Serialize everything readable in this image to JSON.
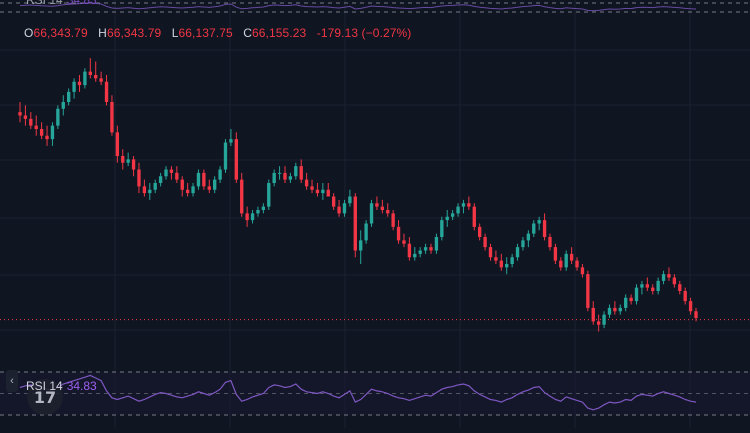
{
  "ohlc": {
    "o_key": "O",
    "o_val": "66,343.79",
    "h_key": "H",
    "h_val": "66,343.79",
    "l_key": "L",
    "l_val": "66,137.75",
    "c_key": "C",
    "c_val": "66,155.23",
    "change": "-179.13 (−0.27%)"
  },
  "rsi": {
    "name": "RSI 14",
    "value": "34.83"
  },
  "colors": {
    "background": "#0f1521",
    "up": "#26a69a",
    "down": "#f23645",
    "rsi_line": "#7e57c2",
    "grid": "#1b2130",
    "price_line": "#f23645"
  },
  "icons": {
    "collapse": "chevron-left-icon",
    "logo": "tradingview-logo-icon"
  },
  "chart_data": {
    "type": "candlestick",
    "title": "",
    "price_range": [
      66080,
      66960
    ],
    "last_price": 66155.23,
    "grid": true,
    "candles": [
      [
        66770,
        66800,
        66740,
        66760
      ],
      [
        66760,
        66790,
        66730,
        66750
      ],
      [
        66750,
        66770,
        66720,
        66730
      ],
      [
        66730,
        66760,
        66700,
        66720
      ],
      [
        66720,
        66740,
        66690,
        66700
      ],
      [
        66700,
        66730,
        66670,
        66690
      ],
      [
        66690,
        66740,
        66670,
        66730
      ],
      [
        66730,
        66790,
        66720,
        66780
      ],
      [
        66780,
        66820,
        66760,
        66800
      ],
      [
        66800,
        66840,
        66790,
        66830
      ],
      [
        66830,
        66870,
        66810,
        66860
      ],
      [
        66860,
        66880,
        66830,
        66850
      ],
      [
        66850,
        66900,
        66840,
        66890
      ],
      [
        66890,
        66930,
        66870,
        66880
      ],
      [
        66880,
        66920,
        66860,
        66870
      ],
      [
        66870,
        66890,
        66850,
        66860
      ],
      [
        66860,
        66880,
        66790,
        66800
      ],
      [
        66800,
        66820,
        66700,
        66710
      ],
      [
        66710,
        66730,
        66620,
        66640
      ],
      [
        66640,
        66660,
        66600,
        66620
      ],
      [
        66620,
        66650,
        66610,
        66630
      ],
      [
        66630,
        66640,
        66580,
        66600
      ],
      [
        66600,
        66620,
        66530,
        66550
      ],
      [
        66550,
        66570,
        66520,
        66530
      ],
      [
        66530,
        66560,
        66510,
        66540
      ],
      [
        66540,
        66570,
        66530,
        66560
      ],
      [
        66560,
        66590,
        66550,
        66580
      ],
      [
        66580,
        66610,
        66570,
        66600
      ],
      [
        66600,
        66610,
        66570,
        66590
      ],
      [
        66590,
        66610,
        66560,
        66570
      ],
      [
        66570,
        66580,
        66520,
        66540
      ],
      [
        66540,
        66560,
        66520,
        66530
      ],
      [
        66530,
        66560,
        66520,
        66550
      ],
      [
        66550,
        66600,
        66540,
        66590
      ],
      [
        66590,
        66600,
        66540,
        66550
      ],
      [
        66550,
        66570,
        66530,
        66540
      ],
      [
        66540,
        66580,
        66530,
        66570
      ],
      [
        66570,
        66610,
        66560,
        66600
      ],
      [
        66600,
        66690,
        66590,
        66680
      ],
      [
        66680,
        66720,
        66670,
        66690
      ],
      [
        66690,
        66710,
        66560,
        66570
      ],
      [
        66570,
        66590,
        66460,
        66470
      ],
      [
        66470,
        66490,
        66430,
        66450
      ],
      [
        66450,
        66480,
        66440,
        66470
      ],
      [
        66470,
        66490,
        66460,
        66480
      ],
      [
        66480,
        66500,
        66470,
        66490
      ],
      [
        66490,
        66570,
        66480,
        66560
      ],
      [
        66560,
        66600,
        66550,
        66590
      ],
      [
        66590,
        66610,
        66570,
        66590
      ],
      [
        66590,
        66610,
        66560,
        66570
      ],
      [
        66570,
        66590,
        66560,
        66580
      ],
      [
        66580,
        66620,
        66570,
        66610
      ],
      [
        66610,
        66630,
        66560,
        66570
      ],
      [
        66570,
        66590,
        66540,
        66550
      ],
      [
        66550,
        66570,
        66530,
        66540
      ],
      [
        66540,
        66560,
        66520,
        66530
      ],
      [
        66530,
        66560,
        66510,
        66540
      ],
      [
        66540,
        66560,
        66520,
        66520
      ],
      [
        66520,
        66530,
        66480,
        66490
      ],
      [
        66490,
        66510,
        66460,
        66470
      ],
      [
        66470,
        66510,
        66460,
        66500
      ],
      [
        66500,
        66540,
        66490,
        66520
      ],
      [
        66520,
        66530,
        66340,
        66360
      ],
      [
        66360,
        66420,
        66320,
        66390
      ],
      [
        66390,
        66450,
        66380,
        66440
      ],
      [
        66440,
        66510,
        66430,
        66500
      ],
      [
        66500,
        66520,
        66480,
        66490
      ],
      [
        66490,
        66510,
        66470,
        66480
      ],
      [
        66480,
        66500,
        66460,
        66470
      ],
      [
        66470,
        66480,
        66420,
        66430
      ],
      [
        66430,
        66450,
        66380,
        66390
      ],
      [
        66390,
        66410,
        66370,
        66380
      ],
      [
        66380,
        66400,
        66330,
        66340
      ],
      [
        66340,
        66370,
        66330,
        66350
      ],
      [
        66350,
        66370,
        66340,
        66360
      ],
      [
        66360,
        66380,
        66350,
        66370
      ],
      [
        66370,
        66380,
        66350,
        66360
      ],
      [
        66360,
        66410,
        66350,
        66400
      ],
      [
        66400,
        66460,
        66390,
        66450
      ],
      [
        66450,
        66480,
        66430,
        66460
      ],
      [
        66460,
        66480,
        66450,
        66470
      ],
      [
        66470,
        66500,
        66460,
        66490
      ],
      [
        66490,
        66510,
        66470,
        66500
      ],
      [
        66500,
        66520,
        66480,
        66490
      ],
      [
        66490,
        66500,
        66420,
        66430
      ],
      [
        66430,
        66440,
        66390,
        66400
      ],
      [
        66400,
        66410,
        66360,
        66370
      ],
      [
        66370,
        66380,
        66330,
        66340
      ],
      [
        66340,
        66360,
        66320,
        66330
      ],
      [
        66330,
        66350,
        66300,
        66310
      ],
      [
        66310,
        66340,
        66290,
        66320
      ],
      [
        66320,
        66350,
        66310,
        66340
      ],
      [
        66340,
        66380,
        66330,
        66370
      ],
      [
        66370,
        66400,
        66360,
        66390
      ],
      [
        66390,
        66420,
        66370,
        66410
      ],
      [
        66410,
        66450,
        66400,
        66440
      ],
      [
        66440,
        66460,
        66420,
        66450
      ],
      [
        66450,
        66470,
        66390,
        66400
      ],
      [
        66400,
        66410,
        66360,
        66370
      ],
      [
        66370,
        66380,
        66320,
        66330
      ],
      [
        66330,
        66340,
        66300,
        66310
      ],
      [
        66310,
        66360,
        66300,
        66350
      ],
      [
        66350,
        66370,
        66320,
        66330
      ],
      [
        66330,
        66340,
        66300,
        66310
      ],
      [
        66310,
        66320,
        66280,
        66290
      ],
      [
        66290,
        66300,
        66180,
        66190
      ],
      [
        66190,
        66210,
        66140,
        66150
      ],
      [
        66150,
        66170,
        66120,
        66140
      ],
      [
        66140,
        66180,
        66130,
        66170
      ],
      [
        66170,
        66200,
        66160,
        66190
      ],
      [
        66190,
        66210,
        66170,
        66180
      ],
      [
        66180,
        66200,
        66170,
        66190
      ],
      [
        66190,
        66230,
        66180,
        66220
      ],
      [
        66220,
        66230,
        66200,
        66210
      ],
      [
        66210,
        66260,
        66200,
        66250
      ],
      [
        66250,
        66270,
        66230,
        66260
      ],
      [
        66260,
        66280,
        66240,
        66250
      ],
      [
        66250,
        66260,
        66230,
        66240
      ],
      [
        66240,
        66280,
        66230,
        66270
      ],
      [
        66270,
        66300,
        66260,
        66290
      ],
      [
        66290,
        66310,
        66270,
        66280
      ],
      [
        66280,
        66290,
        66250,
        66260
      ],
      [
        66260,
        66270,
        66230,
        66240
      ],
      [
        66240,
        66250,
        66200,
        66210
      ],
      [
        66210,
        66220,
        66170,
        66180
      ],
      [
        66180,
        66190,
        66150,
        66160
      ]
    ],
    "rsi_values": [
      52,
      54,
      55,
      53,
      51,
      50,
      49,
      52,
      56,
      58,
      60,
      62,
      64,
      66,
      63,
      60,
      48,
      40,
      38,
      40,
      42,
      39,
      36,
      38,
      41,
      44,
      46,
      45,
      43,
      41,
      40,
      42,
      44,
      47,
      45,
      43,
      46,
      50,
      58,
      60,
      44,
      36,
      38,
      41,
      43,
      45,
      52,
      55,
      54,
      52,
      53,
      56,
      50,
      47,
      46,
      45,
      47,
      45,
      42,
      40,
      44,
      48,
      35,
      38,
      44,
      50,
      48,
      47,
      45,
      42,
      40,
      39,
      37,
      39,
      41,
      43,
      42,
      46,
      50,
      52,
      53,
      55,
      56,
      54,
      48,
      44,
      41,
      38,
      37,
      35,
      38,
      40,
      44,
      47,
      49,
      52,
      53,
      46,
      42,
      38,
      36,
      41,
      39,
      37,
      35,
      28,
      26,
      28,
      32,
      35,
      34,
      35,
      38,
      37,
      42,
      44,
      43,
      42,
      45,
      47,
      45,
      43,
      41,
      38,
      36,
      35
    ]
  }
}
